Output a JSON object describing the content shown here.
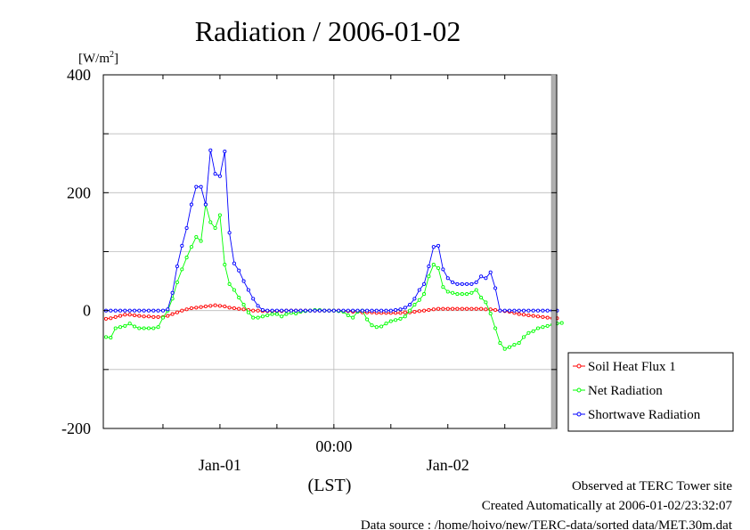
{
  "chart_data": {
    "type": "line",
    "title": "Radiation / 2006-01-02",
    "y_unit": "[W/m",
    "y_unit_sup": "2",
    "y_unit_close": "]",
    "ylim": [
      -200,
      400
    ],
    "y_ticks": [
      {
        "value": 400,
        "label": "400"
      },
      {
        "value": 200,
        "label": "200"
      },
      {
        "value": 0,
        "label": "0"
      },
      {
        "value": -200,
        "label": "-200"
      }
    ],
    "x_ticks": [
      {
        "label": "00:00",
        "index": 48
      },
      {
        "label": "Jan-01",
        "index": 24
      },
      {
        "label": "Jan-02",
        "index": 72
      }
    ],
    "xlabel": "(LST)",
    "grid": true,
    "legend_position": "right",
    "series": [
      {
        "name": "Soil Heat Flux 1",
        "color": "#ff0000",
        "values": [
          -14,
          -13,
          -11,
          -9,
          -7,
          -7,
          -8,
          -9,
          -10,
          -10,
          -11,
          -11,
          -11,
          -9,
          -6,
          -3,
          0,
          2,
          4,
          5,
          6,
          7,
          8,
          9,
          8,
          7,
          5,
          4,
          3,
          2,
          1,
          0,
          0,
          -1,
          -1,
          -1,
          -1,
          -1,
          0,
          0,
          0,
          0,
          0,
          0,
          0,
          0,
          0,
          0,
          0,
          0,
          -1,
          -1,
          -2,
          -2,
          -3,
          -3,
          -3,
          -4,
          -4,
          -4,
          -4,
          -4,
          -4,
          -3,
          -3,
          -2,
          -1,
          0,
          1,
          2,
          3,
          3,
          3,
          3,
          3,
          3,
          3,
          3,
          3,
          3,
          2,
          2,
          1,
          0,
          -1,
          -2,
          -4,
          -6,
          -7,
          -8,
          -9,
          -10,
          -11,
          -12,
          -13,
          -13
        ]
      },
      {
        "name": "Net Radiation",
        "color": "#00ff00",
        "values": [
          -45,
          -46,
          -30,
          -28,
          -26,
          -22,
          -27,
          -30,
          -30,
          -30,
          -30,
          -28,
          -12,
          0,
          20,
          48,
          70,
          90,
          108,
          125,
          118,
          180,
          150,
          140,
          162,
          78,
          45,
          35,
          22,
          10,
          -3,
          -12,
          -12,
          -10,
          -8,
          -6,
          -6,
          -10,
          -6,
          -4,
          -5,
          -2,
          -1,
          0,
          1,
          1,
          0,
          0,
          0,
          -1,
          -2,
          -8,
          -12,
          -2,
          0,
          -15,
          -25,
          -28,
          -27,
          -22,
          -18,
          -16,
          -14,
          -10,
          0,
          10,
          18,
          28,
          58,
          78,
          72,
          40,
          32,
          30,
          28,
          28,
          28,
          30,
          35,
          22,
          14,
          -5,
          -30,
          -55,
          -65,
          -62,
          -58,
          -55,
          -45,
          -38,
          -35,
          -30,
          -28,
          -26,
          -24,
          -22,
          -21
        ]
      },
      {
        "name": "Shortwave Radiation",
        "color": "#0000ff",
        "values": [
          0,
          0,
          0,
          0,
          0,
          0,
          0,
          0,
          0,
          0,
          0,
          0,
          0,
          2,
          30,
          75,
          110,
          140,
          180,
          210,
          210,
          180,
          272,
          232,
          228,
          270,
          132,
          80,
          68,
          50,
          35,
          20,
          8,
          1,
          0,
          0,
          0,
          0,
          0,
          0,
          0,
          0,
          0,
          0,
          0,
          0,
          0,
          0,
          0,
          0,
          0,
          0,
          0,
          0,
          0,
          0,
          0,
          0,
          0,
          0,
          0,
          1,
          2,
          5,
          10,
          20,
          35,
          45,
          75,
          108,
          110,
          70,
          55,
          48,
          45,
          45,
          45,
          45,
          48,
          58,
          55,
          65,
          38,
          0,
          0,
          0,
          0,
          0,
          0,
          0,
          0,
          0,
          0,
          0,
          0,
          0
        ]
      }
    ]
  },
  "footer": {
    "line1": "Observed at TERC Tower site",
    "line2": "Created Automatically at 2006-01-02/23:32:07",
    "line3": "Data source : /home/hoivo/new/TERC-data/sorted  data/MET.30m.dat"
  }
}
